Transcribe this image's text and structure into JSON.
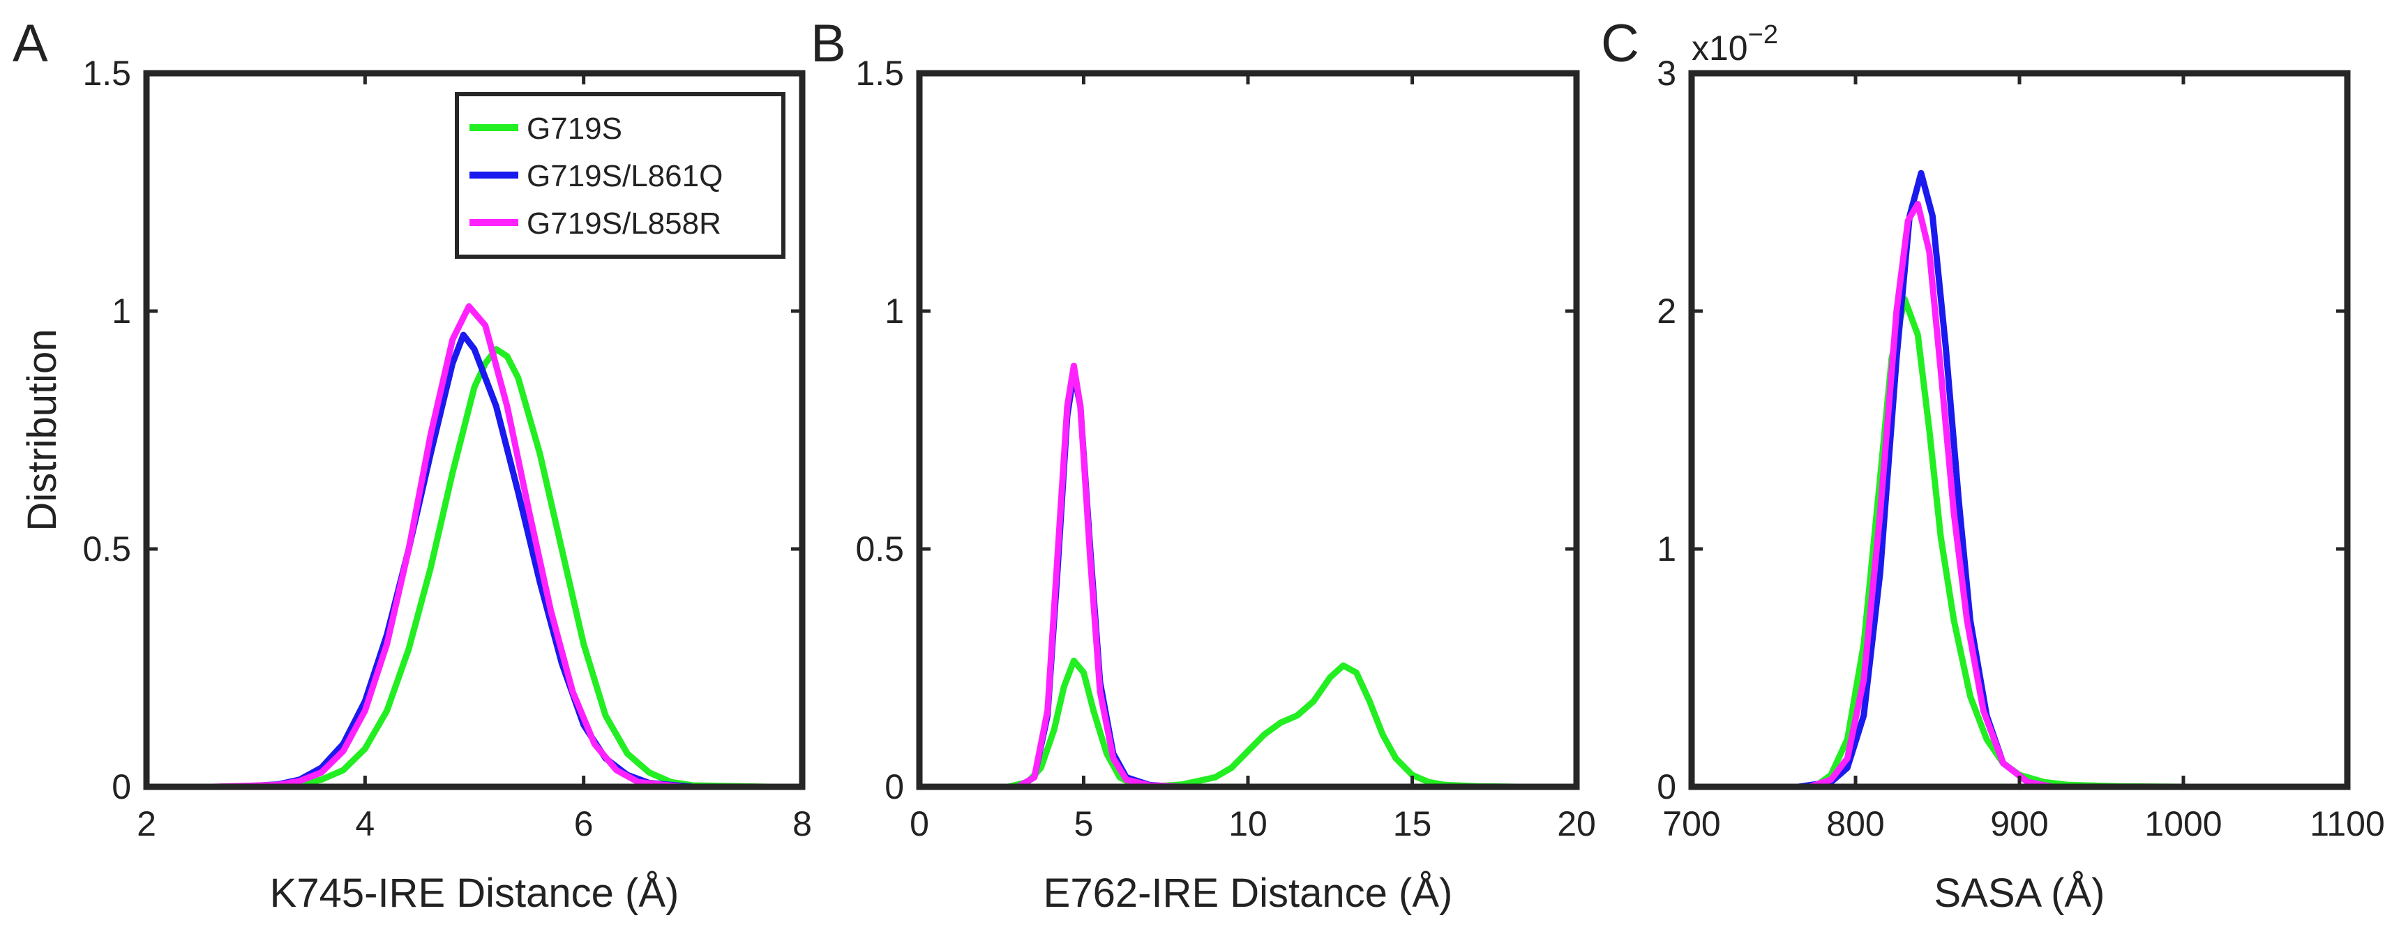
{
  "chart_data": [
    {
      "type": "line",
      "panel": "A",
      "title": "",
      "xlabel": "K745-IRE Distance (Å)",
      "ylabel": "Distribution",
      "xlim": [
        2,
        8
      ],
      "ylim": [
        0,
        1.5
      ],
      "xticks": [
        2,
        4,
        6,
        8
      ],
      "yticks": [
        0,
        0.5,
        1,
        1.5
      ],
      "ytick_labels": [
        "0",
        "0.5",
        "1",
        "1.5"
      ],
      "legend": {
        "position": "top-right",
        "entries": [
          "G719S",
          "G719S/L861Q",
          "G719S/L858R"
        ]
      },
      "series": [
        {
          "name": "G719S",
          "color": "#22ee22",
          "x": [
            3.0,
            3.4,
            3.6,
            3.8,
            4.0,
            4.2,
            4.4,
            4.6,
            4.8,
            5.0,
            5.1,
            5.2,
            5.3,
            5.4,
            5.6,
            5.8,
            6.0,
            6.2,
            6.4,
            6.6,
            6.8,
            7.0,
            7.7
          ],
          "y": [
            0,
            0.005,
            0.015,
            0.035,
            0.08,
            0.16,
            0.29,
            0.46,
            0.66,
            0.84,
            0.89,
            0.92,
            0.905,
            0.86,
            0.7,
            0.5,
            0.3,
            0.15,
            0.07,
            0.03,
            0.01,
            0.003,
            0
          ]
        },
        {
          "name": "G719S/L861Q",
          "color": "#1a1aee",
          "x": [
            2.8,
            3.2,
            3.4,
            3.6,
            3.8,
            4.0,
            4.2,
            4.4,
            4.6,
            4.8,
            4.9,
            5.0,
            5.2,
            5.4,
            5.6,
            5.8,
            6.0,
            6.2,
            6.4,
            6.6,
            7.0
          ],
          "y": [
            0,
            0.005,
            0.015,
            0.04,
            0.09,
            0.18,
            0.32,
            0.5,
            0.7,
            0.89,
            0.95,
            0.92,
            0.8,
            0.62,
            0.43,
            0.26,
            0.13,
            0.06,
            0.025,
            0.008,
            0
          ]
        },
        {
          "name": "G719S/L858R",
          "color": "#ff22ff",
          "x": [
            2.6,
            3.2,
            3.4,
            3.6,
            3.8,
            4.0,
            4.2,
            4.4,
            4.6,
            4.8,
            4.95,
            5.1,
            5.3,
            5.5,
            5.7,
            5.9,
            6.1,
            6.3,
            6.5,
            6.9
          ],
          "y": [
            0,
            0.004,
            0.012,
            0.03,
            0.075,
            0.16,
            0.3,
            0.5,
            0.74,
            0.94,
            1.01,
            0.97,
            0.8,
            0.58,
            0.37,
            0.2,
            0.09,
            0.035,
            0.01,
            0
          ]
        }
      ]
    },
    {
      "type": "line",
      "panel": "B",
      "title": "",
      "xlabel": "E762-IRE Distance (Å)",
      "ylabel": "",
      "xlim": [
        0,
        20
      ],
      "ylim": [
        0,
        1.5
      ],
      "xticks": [
        0,
        5,
        10,
        15,
        20
      ],
      "yticks": [
        0,
        0.5,
        1,
        1.5
      ],
      "ytick_labels": [
        "0",
        "0.5",
        "1",
        "1.5"
      ],
      "series": [
        {
          "name": "G719S",
          "color": "#22ee22",
          "x": [
            2.7,
            3.3,
            3.7,
            4.1,
            4.4,
            4.7,
            5.0,
            5.3,
            5.7,
            6.1,
            6.5,
            7.0,
            8.0,
            9.0,
            9.5,
            10.0,
            10.5,
            11.0,
            11.5,
            12.0,
            12.5,
            12.9,
            13.3,
            13.7,
            14.1,
            14.5,
            15.0,
            15.5,
            16.0,
            17.0,
            18.2
          ],
          "y": [
            0,
            0.01,
            0.04,
            0.12,
            0.21,
            0.265,
            0.24,
            0.16,
            0.07,
            0.02,
            0.005,
            0,
            0.005,
            0.02,
            0.04,
            0.075,
            0.11,
            0.135,
            0.15,
            0.18,
            0.23,
            0.255,
            0.24,
            0.18,
            0.11,
            0.06,
            0.025,
            0.01,
            0.004,
            0.001,
            0
          ]
        },
        {
          "name": "G719S/L861Q",
          "color": "#1a1aee",
          "x": [
            3.0,
            3.5,
            3.9,
            4.2,
            4.5,
            4.7,
            4.9,
            5.2,
            5.5,
            5.9,
            6.3,
            7.0,
            7.8
          ],
          "y": [
            0,
            0.02,
            0.15,
            0.45,
            0.78,
            0.87,
            0.8,
            0.5,
            0.22,
            0.07,
            0.02,
            0.004,
            0
          ]
        },
        {
          "name": "G719S/L858R",
          "color": "#ff22ff",
          "x": [
            3.0,
            3.5,
            3.9,
            4.2,
            4.5,
            4.7,
            4.9,
            5.2,
            5.5,
            5.9,
            6.3,
            7.0,
            8.0
          ],
          "y": [
            0,
            0.02,
            0.16,
            0.48,
            0.8,
            0.885,
            0.8,
            0.48,
            0.2,
            0.06,
            0.015,
            0.003,
            0
          ]
        }
      ]
    },
    {
      "type": "line",
      "panel": "C",
      "title": "",
      "xlabel": "SASA (Å)",
      "ylabel": "",
      "xlim": [
        700,
        1100
      ],
      "ylim": [
        0,
        3
      ],
      "xticks": [
        700,
        800,
        900,
        1000,
        1100
      ],
      "yticks": [
        0,
        1,
        2,
        3
      ],
      "ytick_labels": [
        "0",
        "1",
        "2",
        "3"
      ],
      "y_exponent_label": "x10",
      "y_exponent_value": "−2",
      "series": [
        {
          "name": "G719S",
          "color": "#22ee22",
          "x": [
            775,
            785,
            795,
            805,
            815,
            822,
            830,
            838,
            845,
            852,
            860,
            870,
            880,
            890,
            900,
            915,
            930,
            960,
            1000
          ],
          "y": [
            0,
            0.05,
            0.2,
            0.6,
            1.3,
            1.8,
            2.05,
            1.9,
            1.5,
            1.05,
            0.7,
            0.38,
            0.2,
            0.1,
            0.05,
            0.02,
            0.008,
            0.002,
            0
          ]
        },
        {
          "name": "G719S/L861Q",
          "color": "#1a1aee",
          "x": [
            765,
            785,
            795,
            805,
            815,
            825,
            833,
            840,
            847,
            855,
            863,
            870,
            880,
            890,
            905,
            920
          ],
          "y": [
            0,
            0.02,
            0.08,
            0.3,
            0.9,
            1.8,
            2.4,
            2.58,
            2.4,
            1.85,
            1.2,
            0.7,
            0.3,
            0.1,
            0.02,
            0
          ]
        },
        {
          "name": "G719S/L858R",
          "color": "#ff22ff",
          "x": [
            772,
            785,
            795,
            805,
            815,
            825,
            832,
            838,
            845,
            852,
            860,
            868,
            878,
            890,
            905,
            920
          ],
          "y": [
            0,
            0.03,
            0.12,
            0.45,
            1.15,
            2.0,
            2.38,
            2.45,
            2.25,
            1.75,
            1.15,
            0.7,
            0.32,
            0.1,
            0.02,
            0
          ]
        }
      ]
    }
  ]
}
